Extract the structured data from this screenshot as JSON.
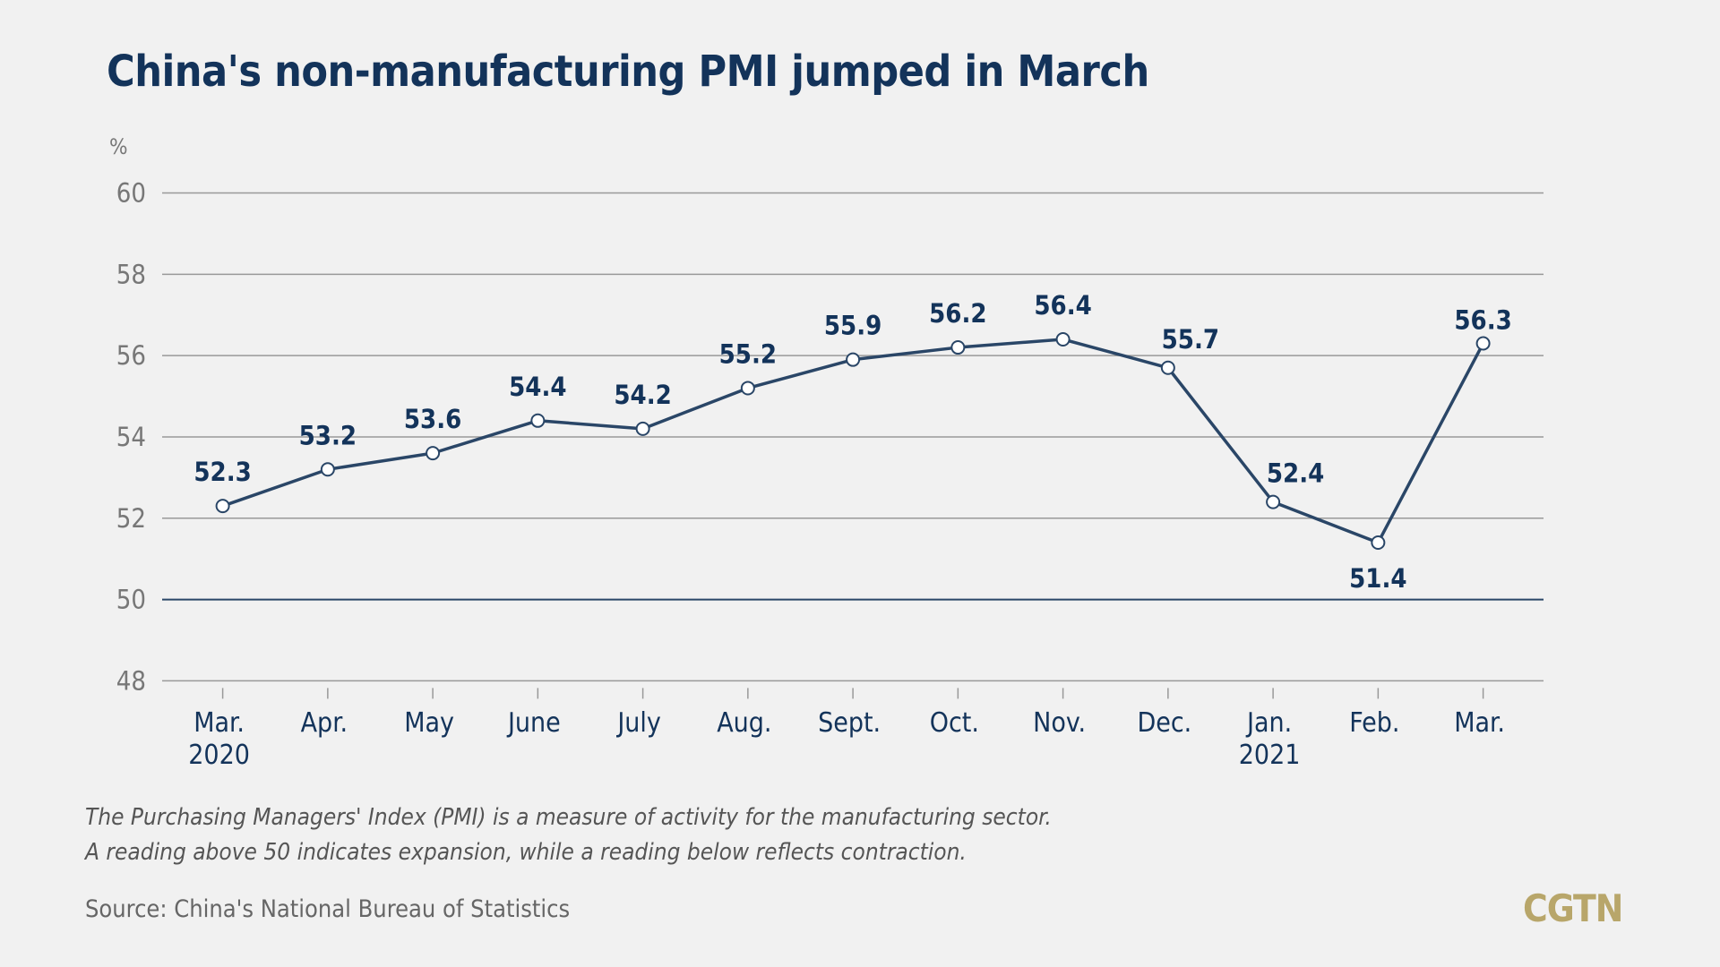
{
  "chart_data": {
    "type": "line",
    "title": "China's non-manufacturing PMI jumped in March",
    "ylabel": "%",
    "ylim": [
      48,
      60
    ],
    "yticks": [
      48,
      50,
      52,
      54,
      56,
      58,
      60
    ],
    "categories": [
      "Mar.\n2020",
      "Apr.",
      "May",
      "June",
      "July",
      "Aug.",
      "Sept.",
      "Oct.",
      "Nov.",
      "Dec.",
      "Jan.\n2021",
      "Feb.",
      "Mar."
    ],
    "values": [
      52.3,
      53.2,
      53.6,
      54.4,
      54.2,
      55.2,
      55.9,
      56.2,
      56.4,
      55.7,
      52.4,
      51.4,
      56.3
    ],
    "reference_line": 50,
    "grid": true,
    "colors": {
      "line": "#2a4667",
      "labels": "#13335a",
      "grid": "#999999"
    }
  },
  "footnotes": [
    "The Purchasing Managers' Index (PMI) is a measure of activity for the manufacturing sector.",
    "A reading above 50 indicates expansion, while a reading below reflects contraction."
  ],
  "source": "Source: China's National Bureau of Statistics",
  "logo": "CGTN"
}
